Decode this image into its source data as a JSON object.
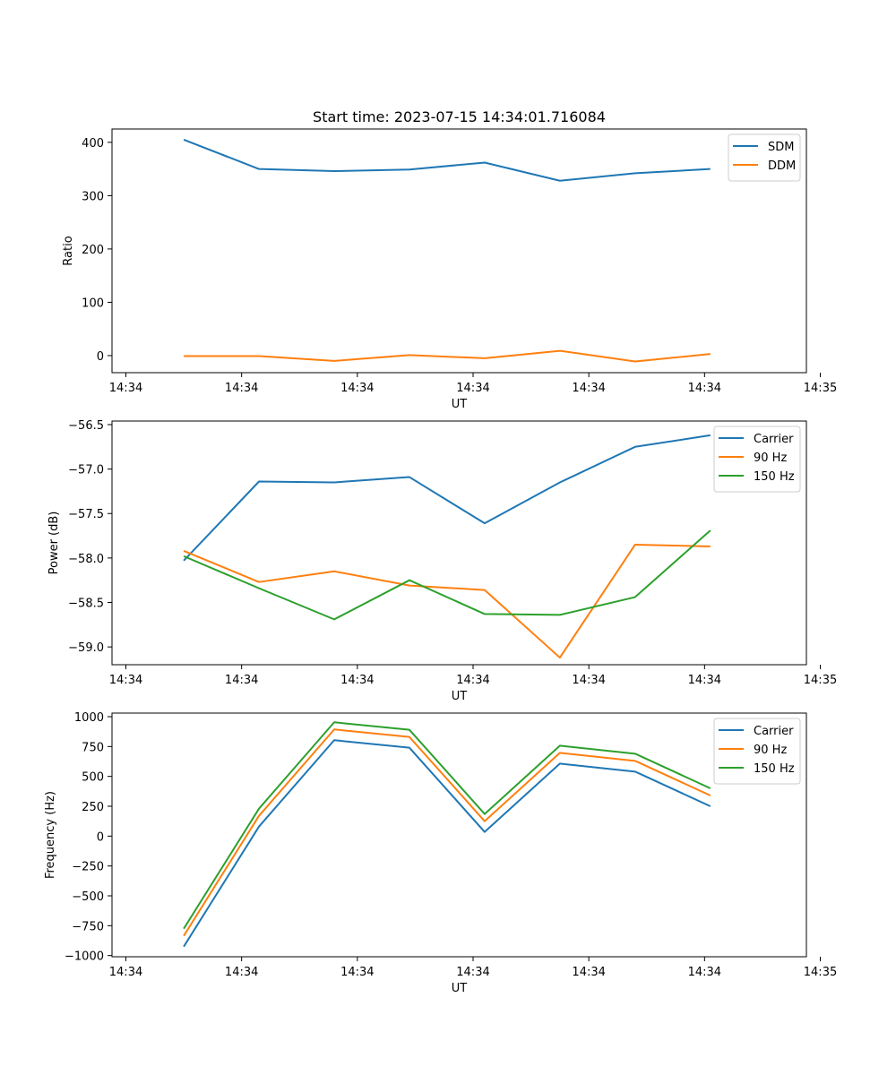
{
  "figure_title": "Start time: 2023-07-15 14:34:01.716084",
  "chart_data": [
    {
      "type": "line",
      "title": "Start time: 2023-07-15 14:34:01.716084",
      "xlabel": "UT",
      "ylabel": "Ratio",
      "x": [
        0.5,
        1.15,
        1.8,
        2.45,
        3.1,
        3.75,
        4.4,
        5.05
      ],
      "xlim": [
        -0.12,
        5.88
      ],
      "xticks": [
        0,
        1,
        2,
        3,
        4,
        5,
        6
      ],
      "xtick_labels": [
        "14:34",
        "14:34",
        "14:34",
        "14:34",
        "14:34",
        "14:34",
        "14:35"
      ],
      "ylim": [
        -32,
        425
      ],
      "yticks": [
        0,
        100,
        200,
        300,
        400
      ],
      "ytick_labels": [
        "0",
        "100",
        "200",
        "300",
        "400"
      ],
      "legend_position": "top-right",
      "series": [
        {
          "name": "SDM",
          "color": "#1f77b4",
          "values": [
            405,
            350,
            346,
            349,
            362,
            328,
            342,
            350
          ]
        },
        {
          "name": "DDM",
          "color": "#ff7f0e",
          "values": [
            -1,
            -1,
            -10,
            1,
            -5,
            9,
            -11,
            3
          ]
        }
      ]
    },
    {
      "type": "line",
      "xlabel": "UT",
      "ylabel": "Power (dB)",
      "x": [
        0.5,
        1.15,
        1.8,
        2.45,
        3.1,
        3.75,
        4.4,
        5.05
      ],
      "xlim": [
        -0.12,
        5.88
      ],
      "xticks": [
        0,
        1,
        2,
        3,
        4,
        5,
        6
      ],
      "xtick_labels": [
        "14:34",
        "14:34",
        "14:34",
        "14:34",
        "14:34",
        "14:34",
        "14:35"
      ],
      "ylim": [
        -59.2,
        -56.46
      ],
      "yticks": [
        -59.0,
        -58.5,
        -58.0,
        -57.5,
        -57.0,
        -56.5
      ],
      "ytick_labels": [
        "−59.0",
        "−58.5",
        "−58.0",
        "−57.5",
        "−57.0",
        "−56.5"
      ],
      "legend_position": "top-right",
      "series": [
        {
          "name": "Carrier",
          "color": "#1f77b4",
          "values": [
            -58.03,
            -57.14,
            -57.15,
            -57.09,
            -57.61,
            -57.15,
            -56.75,
            -56.62
          ]
        },
        {
          "name": "90 Hz",
          "color": "#ff7f0e",
          "values": [
            -57.92,
            -58.27,
            -58.15,
            -58.31,
            -58.36,
            -59.12,
            -57.85,
            -57.87
          ]
        },
        {
          "name": "150 Hz",
          "color": "#2ca02c",
          "values": [
            -57.98,
            -58.34,
            -58.69,
            -58.25,
            -58.63,
            -58.64,
            -58.44,
            -57.69
          ]
        }
      ]
    },
    {
      "type": "line",
      "xlabel": "UT",
      "ylabel": "Frequency (Hz)",
      "x": [
        0.5,
        1.15,
        1.8,
        2.45,
        3.1,
        3.75,
        4.4,
        5.05
      ],
      "xlim": [
        -0.12,
        5.88
      ],
      "xticks": [
        0,
        1,
        2,
        3,
        4,
        5,
        6
      ],
      "xtick_labels": [
        "14:34",
        "14:34",
        "14:34",
        "14:34",
        "14:34",
        "14:34",
        "14:35"
      ],
      "ylim": [
        -1010,
        1030
      ],
      "yticks": [
        -1000,
        -750,
        -500,
        -250,
        0,
        250,
        500,
        750,
        1000
      ],
      "ytick_labels": [
        "−1000",
        "−750",
        "−500",
        "−250",
        "0",
        "250",
        "500",
        "750",
        "1000"
      ],
      "legend_position": "top-right",
      "series": [
        {
          "name": "Carrier",
          "color": "#1f77b4",
          "values": [
            -925,
            80,
            803,
            740,
            35,
            607,
            540,
            250
          ]
        },
        {
          "name": "90 Hz",
          "color": "#ff7f0e",
          "values": [
            -835,
            170,
            893,
            830,
            125,
            697,
            630,
            340
          ]
        },
        {
          "name": "150 Hz",
          "color": "#2ca02c",
          "values": [
            -775,
            230,
            953,
            890,
            185,
            757,
            690,
            400
          ]
        }
      ]
    }
  ]
}
